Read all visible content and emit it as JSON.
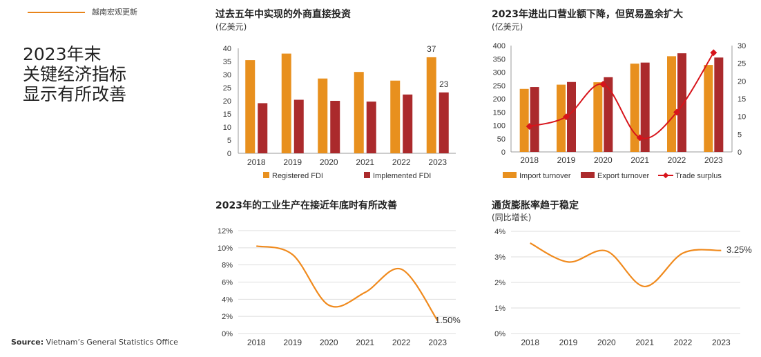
{
  "header": {
    "text": "越南宏观更新"
  },
  "main_title": {
    "line1": "2023年末",
    "line2": "关键经济指标",
    "line3": "显示有所改善"
  },
  "source": {
    "label": "Source:",
    "text": "Vietnam’s General Statistics Office"
  },
  "colors": {
    "orange": "#e8901e",
    "darkred": "#ab2a2c",
    "red": "#d7141b",
    "line_orange": "#f08a1d",
    "grid": "#dddddd"
  },
  "chart_data": [
    {
      "id": "fdi",
      "type": "bar",
      "title": "过去五年中实现的外商直接投资",
      "subtitle": "(亿美元)",
      "categories": [
        "2018",
        "2019",
        "2020",
        "2021",
        "2022",
        "2023"
      ],
      "yticks": [
        "0",
        "5",
        "10",
        "15",
        "20",
        "25",
        "30",
        "35",
        "40"
      ],
      "ylim": [
        0,
        40
      ],
      "series": [
        {
          "name": "Registered FDI",
          "values": [
            35.5,
            38,
            28.5,
            31,
            27.7,
            36.6
          ]
        },
        {
          "name": "Implemented FDI",
          "values": [
            19.1,
            20.4,
            20,
            19.7,
            22.4,
            23.2
          ]
        }
      ],
      "annotations": [
        "37",
        "23"
      ]
    },
    {
      "id": "trade",
      "type": "bar",
      "title": "2023年进出口营业额下降，但贸易盈余扩大",
      "subtitle": "(亿美元)",
      "categories": [
        "2018",
        "2019",
        "2020",
        "2021",
        "2022",
        "2023"
      ],
      "yticks_left": [
        "0",
        "50",
        "100",
        "150",
        "200",
        "250",
        "300",
        "350",
        "400"
      ],
      "yticks_right": [
        "0",
        "5",
        "10",
        "15",
        "20",
        "25",
        "30"
      ],
      "ylim_left": [
        0,
        400
      ],
      "ylim_right": [
        0,
        30
      ],
      "series": [
        {
          "name": "Import turnover",
          "values": [
            237,
            253,
            262,
            332,
            360,
            327
          ]
        },
        {
          "name": "Export turnover",
          "values": [
            244,
            263,
            281,
            336,
            371,
            355
          ]
        },
        {
          "name": "Trade surplus",
          "type": "line",
          "axis": "right",
          "values": [
            7.2,
            9.9,
            19.1,
            4.0,
            11.2,
            28
          ]
        }
      ]
    },
    {
      "id": "industry",
      "type": "line",
      "title": "2023年的工业生产在接近年底时有所改善",
      "categories": [
        "2018",
        "2019",
        "2020",
        "2021",
        "2022",
        "2023"
      ],
      "yticks": [
        "0%",
        "2%",
        "4%",
        "6%",
        "8%",
        "10%",
        "12%"
      ],
      "ylim": [
        0,
        12
      ],
      "series": [
        {
          "name": "工业生产",
          "values": [
            10.2,
            9.2,
            3.3,
            4.8,
            7.5,
            1.5
          ]
        }
      ],
      "end_label": "1.50%"
    },
    {
      "id": "cpi",
      "type": "line",
      "title": "通货膨胀率趋于稳定",
      "subtitle": "(同比增长)",
      "categories": [
        "2018",
        "2019",
        "2020",
        "2021",
        "2022",
        "2023"
      ],
      "yticks": [
        "0%",
        "1%",
        "2%",
        "3%",
        "4%"
      ],
      "ylim": [
        0,
        4
      ],
      "series": [
        {
          "name": "通胀率",
          "values": [
            3.54,
            2.8,
            3.23,
            1.84,
            3.15,
            3.25
          ]
        }
      ],
      "end_label": "3.25%"
    }
  ]
}
